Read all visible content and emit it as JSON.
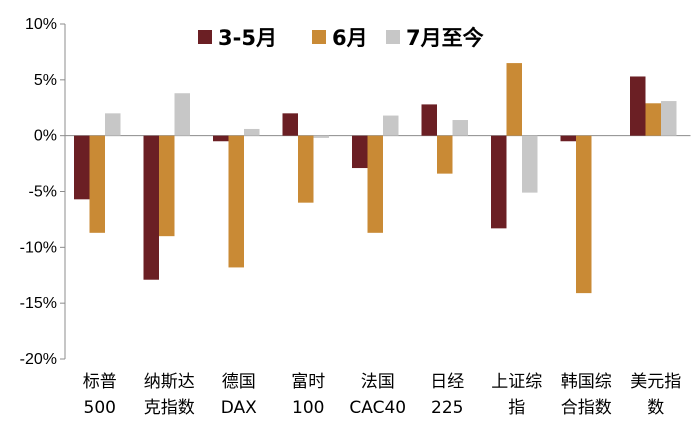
{
  "chart_data": {
    "type": "bar",
    "categories": [
      [
        "标普",
        "500"
      ],
      [
        "纳斯达",
        "克指数"
      ],
      [
        "德国",
        "DAX"
      ],
      [
        "富时",
        "100"
      ],
      [
        "法国",
        "CAC40"
      ],
      [
        "日经",
        "225"
      ],
      [
        "上证综",
        "指"
      ],
      [
        "韩国综",
        "合指数"
      ],
      [
        "美元指",
        "数"
      ]
    ],
    "series": [
      {
        "name": "3-5月",
        "color": "#6b1f24",
        "values": [
          -5.7,
          -12.9,
          -0.5,
          2.0,
          -2.9,
          2.8,
          -8.3,
          -0.5,
          5.3
        ]
      },
      {
        "name": "6月",
        "color": "#c98a35",
        "values": [
          -8.7,
          -9.0,
          -11.8,
          -6.0,
          -8.7,
          -3.4,
          6.5,
          -14.1,
          2.9
        ]
      },
      {
        "name": "7月至今",
        "color": "#c7c7c7",
        "values": [
          2.0,
          3.8,
          0.6,
          -0.2,
          1.8,
          1.4,
          -5.1,
          0.0,
          3.1
        ]
      }
    ],
    "ylim": [
      -20,
      10
    ],
    "yticks": [
      10,
      5,
      0,
      -5,
      -10,
      -15,
      -20
    ],
    "ytick_labels": [
      "10%",
      "5%",
      "0%",
      "-5%",
      "-10%",
      "-15%",
      "-20%"
    ],
    "legend_position": "top-right",
    "grid": false
  }
}
